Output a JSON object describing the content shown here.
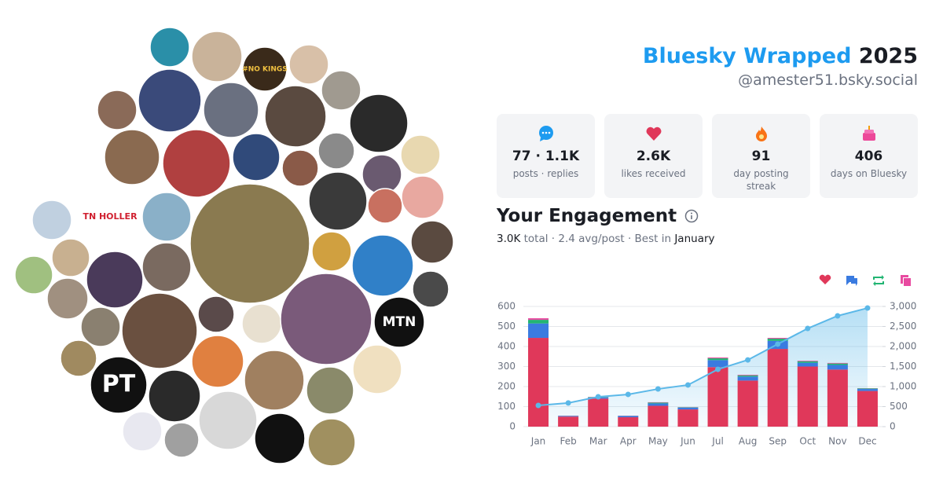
{
  "header": {
    "title": "Bluesky Wrapped",
    "year": "2025",
    "handle": "@amester51.bsky.social"
  },
  "stats": [
    {
      "value": "77 · 1.1K",
      "label": "posts · replies"
    },
    {
      "value": "2.6K",
      "label": "likes received"
    },
    {
      "value": "91",
      "label": "day posting streak"
    },
    {
      "value": "406",
      "label": "days on Bluesky"
    }
  ],
  "engagement": {
    "title": "Your Engagement",
    "total": "3.0K",
    "summary": "total · 2.4 avg/post · Best in",
    "best": "January"
  },
  "avatar_labels": [
    "#NO KINGS",
    "TN HOLLER",
    "PT",
    "MTN"
  ],
  "chart_data": {
    "type": "bar",
    "stacked": true,
    "categories": [
      "Jan",
      "Feb",
      "Mar",
      "Apr",
      "May",
      "Jun",
      "Jul",
      "Aug",
      "Sep",
      "Oct",
      "Nov",
      "Dec"
    ],
    "series": [
      {
        "color": "#e0385a",
        "values": [
          443,
          50,
          140,
          47,
          104,
          86,
          297,
          230,
          388,
          300,
          285,
          178
        ]
      },
      {
        "color": "#3a7be0",
        "values": [
          72,
          3,
          6,
          6,
          12,
          9,
          35,
          20,
          40,
          19,
          23,
          10
        ]
      },
      {
        "color": "#22b573",
        "values": [
          18,
          1,
          2,
          1,
          4,
          2,
          9,
          6,
          11,
          7,
          7,
          3
        ]
      },
      {
        "color": "#e84aa0",
        "values": [
          8,
          1,
          1,
          1,
          2,
          1,
          4,
          3,
          4,
          3,
          3,
          1
        ]
      },
      {
        "type": "line",
        "axis": "y2",
        "color": "#5bb8e8",
        "values": [
          530,
          590,
          745,
          805,
          940,
          1040,
          1430,
          1665,
          2060,
          2450,
          2765,
          2960
        ]
      }
    ],
    "ylim": [
      0,
      600
    ],
    "yticks": [
      0,
      100,
      200,
      300,
      400,
      500,
      600
    ],
    "y2lim": [
      0,
      3000
    ],
    "y2ticks": [
      0,
      500,
      {
        "value": 1000,
        "label": "1,000"
      },
      {
        "value": 1500,
        "label": "1,500"
      },
      {
        "value": 2000,
        "label": "2,000"
      },
      {
        "value": 2500,
        "label": "2,500"
      },
      {
        "value": 3000,
        "label": "3,000"
      }
    ],
    "grid": true
  }
}
